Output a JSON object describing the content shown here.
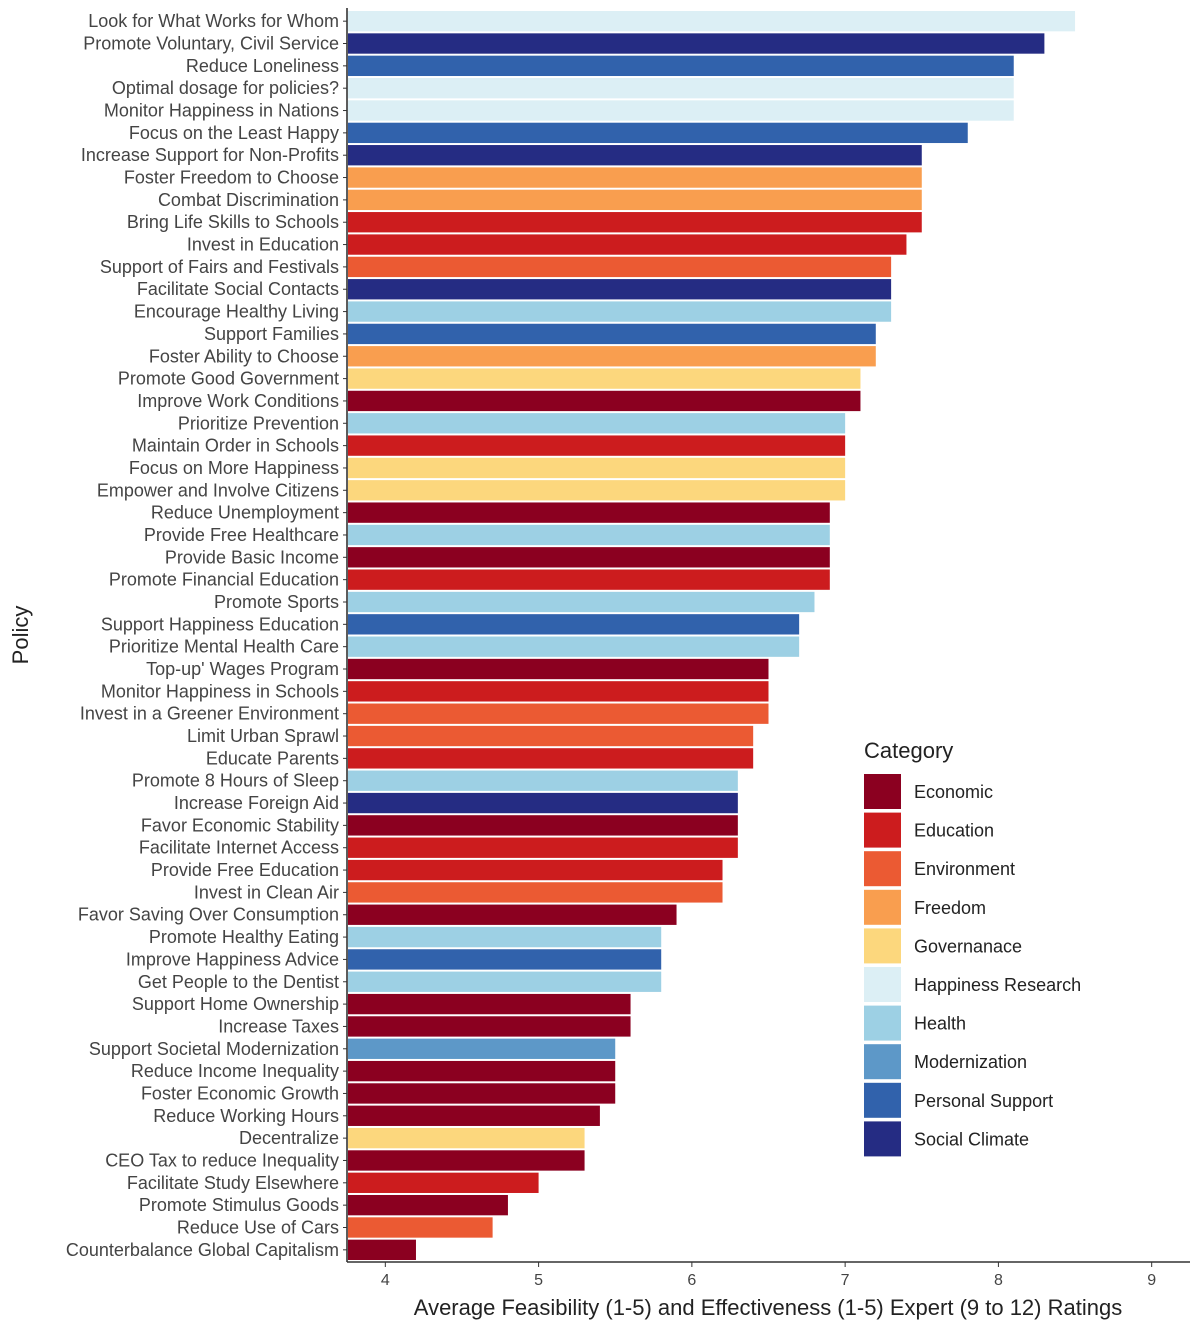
{
  "chart_data": {
    "type": "bar",
    "orientation": "horizontal",
    "xlabel": "Average Feasibility (1-5) and Effectiveness (1-5) Expert (9 to 12) Ratings",
    "ylabel": "Policy",
    "xlim": [
      3.75,
      9.25
    ],
    "xticks": [
      4,
      5,
      6,
      7,
      8,
      9
    ],
    "grid": false,
    "legend": {
      "title": "Category",
      "placement": "right",
      "entries": [
        {
          "name": "Economic",
          "color": "#8B0020"
        },
        {
          "name": "Education",
          "color": "#CC1C1E"
        },
        {
          "name": "Environment",
          "color": "#EB5A33"
        },
        {
          "name": "Freedom",
          "color": "#F99E4F"
        },
        {
          "name": "Governanace",
          "color": "#FCD77D"
        },
        {
          "name": "Happiness Research",
          "color": "#DCEFF5"
        },
        {
          "name": "Health",
          "color": "#9DD0E4"
        },
        {
          "name": "Modernization",
          "color": "#5D98C8"
        },
        {
          "name": "Personal Support",
          "color": "#3162AC"
        },
        {
          "name": "Social Climate",
          "color": "#252C83"
        }
      ]
    },
    "bars": [
      {
        "label": "Look for What Works for Whom",
        "value": 8.5,
        "category": "Happiness Research"
      },
      {
        "label": "Promote Voluntary, Civil Service",
        "value": 8.3,
        "category": "Social Climate"
      },
      {
        "label": "Reduce Loneliness",
        "value": 8.1,
        "category": "Personal Support"
      },
      {
        "label": "Optimal dosage for policies?",
        "value": 8.1,
        "category": "Happiness Research"
      },
      {
        "label": "Monitor Happiness in Nations",
        "value": 8.1,
        "category": "Happiness Research"
      },
      {
        "label": "Focus on the Least Happy",
        "value": 7.8,
        "category": "Personal Support"
      },
      {
        "label": "Increase Support for Non-Profits",
        "value": 7.5,
        "category": "Social Climate"
      },
      {
        "label": "Foster Freedom to Choose",
        "value": 7.5,
        "category": "Freedom"
      },
      {
        "label": "Combat Discrimination",
        "value": 7.5,
        "category": "Freedom"
      },
      {
        "label": "Bring Life Skills to Schools",
        "value": 7.5,
        "category": "Education"
      },
      {
        "label": "Invest in Education",
        "value": 7.4,
        "category": "Education"
      },
      {
        "label": "Support of Fairs and Festivals",
        "value": 7.3,
        "category": "Environment"
      },
      {
        "label": "Facilitate Social Contacts",
        "value": 7.3,
        "category": "Social Climate"
      },
      {
        "label": "Encourage Healthy Living",
        "value": 7.3,
        "category": "Health"
      },
      {
        "label": "Support Families",
        "value": 7.2,
        "category": "Personal Support"
      },
      {
        "label": "Foster Ability to Choose",
        "value": 7.2,
        "category": "Freedom"
      },
      {
        "label": "Promote Good Government",
        "value": 7.1,
        "category": "Governanace"
      },
      {
        "label": "Improve Work Conditions",
        "value": 7.1,
        "category": "Economic"
      },
      {
        "label": "Prioritize Prevention",
        "value": 7.0,
        "category": "Health"
      },
      {
        "label": "Maintain Order in Schools",
        "value": 7.0,
        "category": "Education"
      },
      {
        "label": "Focus on More Happiness",
        "value": 7.0,
        "category": "Governanace"
      },
      {
        "label": "Empower and Involve Citizens",
        "value": 7.0,
        "category": "Governanace"
      },
      {
        "label": "Reduce Unemployment",
        "value": 6.9,
        "category": "Economic"
      },
      {
        "label": "Provide Free Healthcare",
        "value": 6.9,
        "category": "Health"
      },
      {
        "label": "Provide Basic Income",
        "value": 6.9,
        "category": "Economic"
      },
      {
        "label": "Promote Financial Education",
        "value": 6.9,
        "category": "Education"
      },
      {
        "label": "Promote Sports",
        "value": 6.8,
        "category": "Health"
      },
      {
        "label": "Support Happiness Education",
        "value": 6.7,
        "category": "Personal Support"
      },
      {
        "label": "Prioritize Mental Health Care",
        "value": 6.7,
        "category": "Health"
      },
      {
        "label": "Top-up' Wages Program",
        "value": 6.5,
        "category": "Economic"
      },
      {
        "label": "Monitor Happiness in Schools",
        "value": 6.5,
        "category": "Education"
      },
      {
        "label": "Invest in a Greener Environment",
        "value": 6.5,
        "category": "Environment"
      },
      {
        "label": "Limit Urban Sprawl",
        "value": 6.4,
        "category": "Environment"
      },
      {
        "label": "Educate Parents",
        "value": 6.4,
        "category": "Education"
      },
      {
        "label": "Promote 8 Hours of Sleep",
        "value": 6.3,
        "category": "Health"
      },
      {
        "label": "Increase Foreign Aid",
        "value": 6.3,
        "category": "Social Climate"
      },
      {
        "label": "Favor Economic Stability",
        "value": 6.3,
        "category": "Economic"
      },
      {
        "label": "Facilitate Internet Access",
        "value": 6.3,
        "category": "Education"
      },
      {
        "label": "Provide Free Education",
        "value": 6.2,
        "category": "Education"
      },
      {
        "label": "Invest in Clean Air",
        "value": 6.2,
        "category": "Environment"
      },
      {
        "label": "Favor Saving Over Consumption",
        "value": 5.9,
        "category": "Economic"
      },
      {
        "label": "Promote Healthy Eating",
        "value": 5.8,
        "category": "Health"
      },
      {
        "label": "Improve Happiness Advice",
        "value": 5.8,
        "category": "Personal Support"
      },
      {
        "label": "Get People to the Dentist",
        "value": 5.8,
        "category": "Health"
      },
      {
        "label": "Support Home Ownership",
        "value": 5.6,
        "category": "Economic"
      },
      {
        "label": "Increase Taxes",
        "value": 5.6,
        "category": "Economic"
      },
      {
        "label": "Support Societal Modernization",
        "value": 5.5,
        "category": "Modernization"
      },
      {
        "label": "Reduce Income Inequality",
        "value": 5.5,
        "category": "Economic"
      },
      {
        "label": "Foster Economic Growth",
        "value": 5.5,
        "category": "Economic"
      },
      {
        "label": "Reduce Working Hours",
        "value": 5.4,
        "category": "Economic"
      },
      {
        "label": "Decentralize",
        "value": 5.3,
        "category": "Governanace"
      },
      {
        "label": "CEO Tax to reduce Inequality",
        "value": 5.3,
        "category": "Economic"
      },
      {
        "label": "Facilitate Study Elsewhere",
        "value": 5.0,
        "category": "Education"
      },
      {
        "label": "Promote Stimulus Goods",
        "value": 4.8,
        "category": "Economic"
      },
      {
        "label": "Reduce Use of Cars",
        "value": 4.7,
        "category": "Environment"
      },
      {
        "label": "Counterbalance Global Capitalism",
        "value": 4.2,
        "category": "Economic"
      }
    ]
  }
}
